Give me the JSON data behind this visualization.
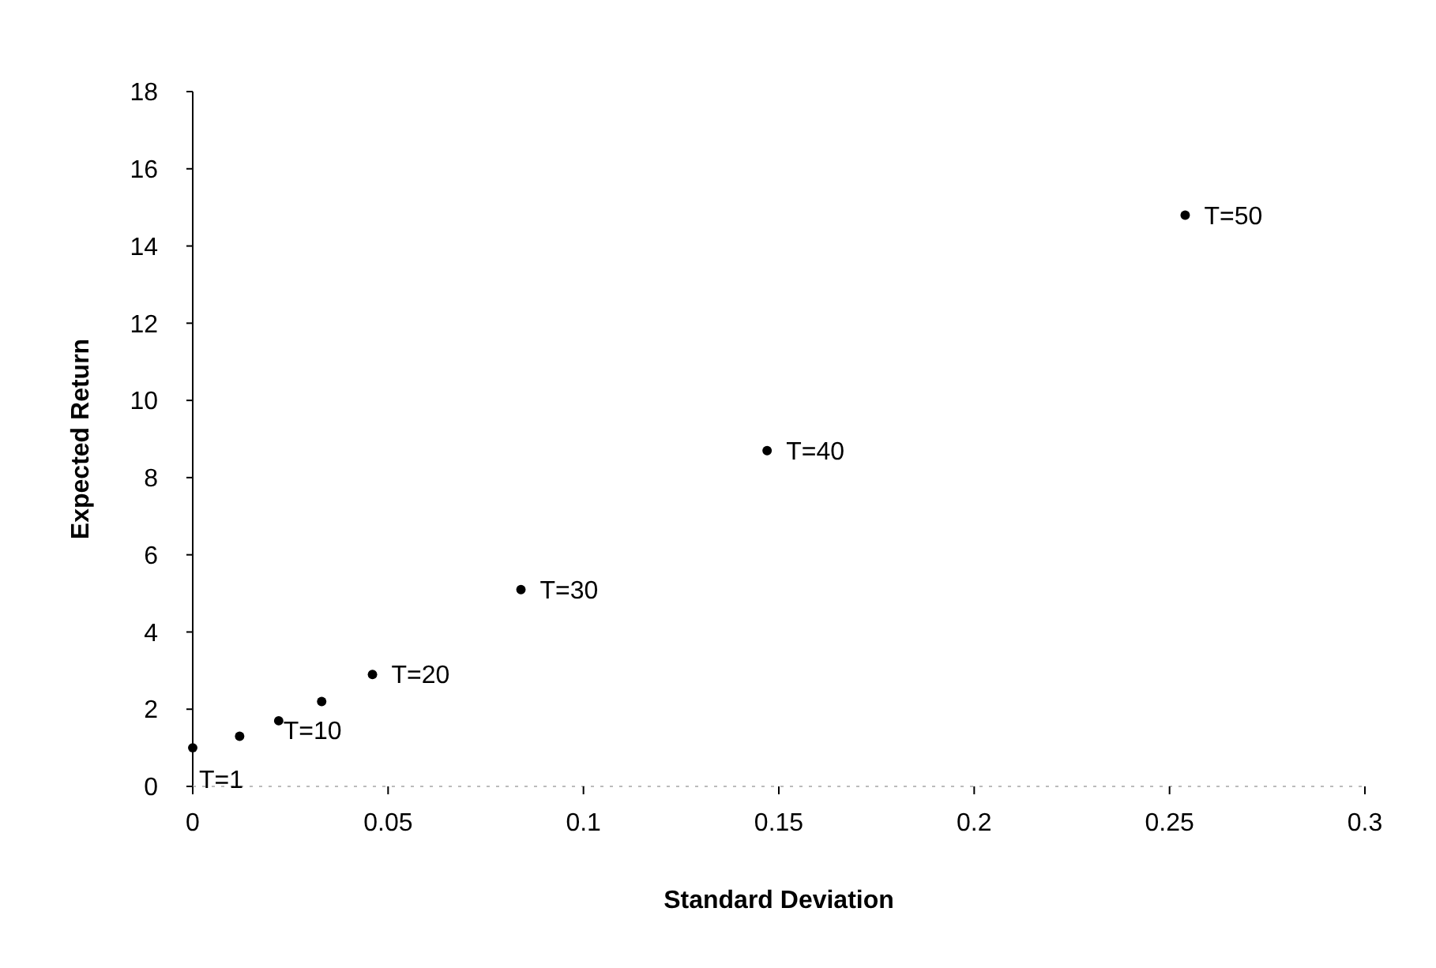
{
  "chart_data": {
    "type": "scatter",
    "xlabel": "Standard Deviation",
    "ylabel": "Expected Return",
    "x": [
      0,
      0.012,
      0.022,
      0.033,
      0.046,
      0.084,
      0.147,
      0.254
    ],
    "values": [
      1.0,
      1.3,
      1.7,
      2.2,
      2.9,
      5.1,
      8.7,
      14.8
    ],
    "color": "#000000",
    "marker": "circle",
    "grid": false,
    "xlim": [
      0,
      0.3
    ],
    "xticks": [
      0,
      0.05,
      0.1,
      0.15,
      0.2,
      0.25,
      0.3
    ],
    "ylim": [
      0,
      18
    ],
    "yticks": [
      0,
      2,
      4,
      6,
      8,
      10,
      12,
      14,
      16,
      18
    ],
    "annotations": [
      {
        "text": "T=1",
        "x": 0,
        "y": 1.0
      },
      {
        "text": "T=10",
        "x": 0.022,
        "y": 1.7
      },
      {
        "text": "T=20",
        "x": 0.046,
        "y": 2.9
      },
      {
        "text": "T=30",
        "x": 0.084,
        "y": 5.1
      },
      {
        "text": "T=40",
        "x": 0.147,
        "y": 8.7
      },
      {
        "text": "T=50",
        "x": 0.254,
        "y": 14.8
      }
    ]
  }
}
